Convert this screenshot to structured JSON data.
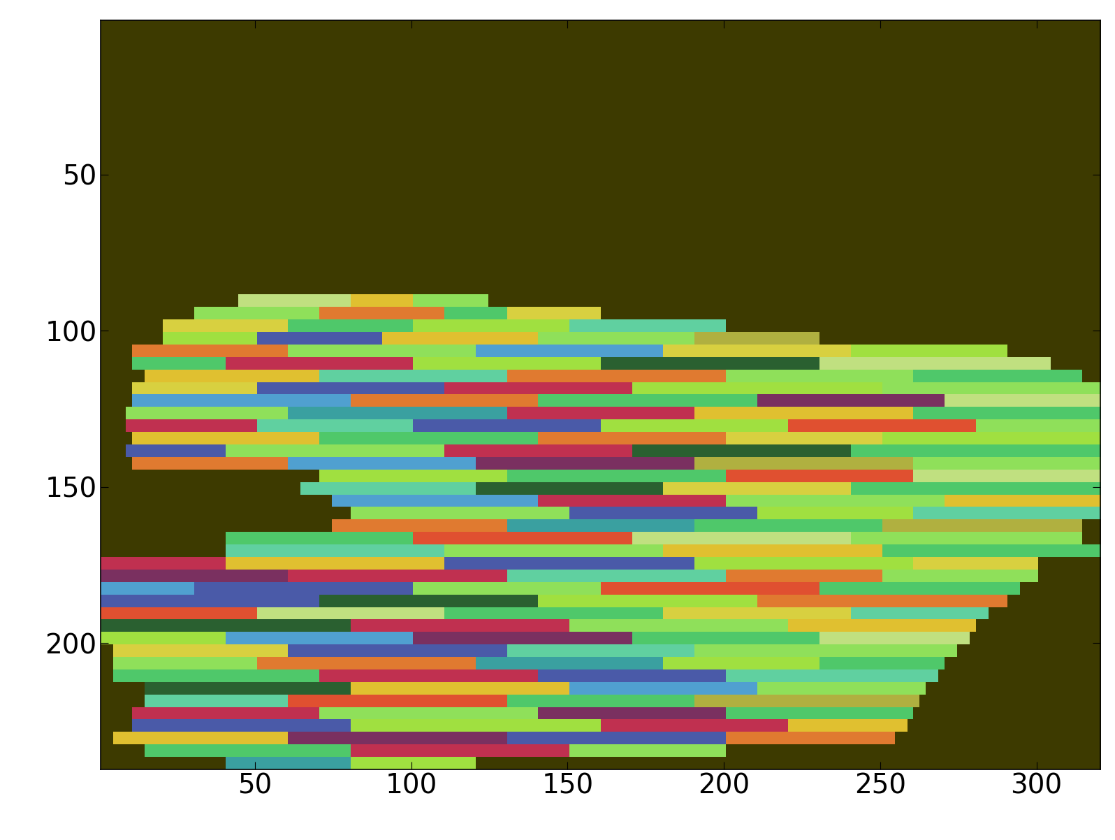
{
  "chart_data": {
    "type": "image",
    "color": "#3d3a00",
    "xlim": [
      0.5,
      320.5
    ],
    "ylim": [
      240.5,
      0.5
    ],
    "xticks": [
      50,
      100,
      150,
      200,
      250,
      300
    ],
    "yticks": [
      50,
      100,
      150,
      200
    ],
    "bands": [
      {
        "y": [
          88,
          92
        ],
        "x_start": [
          45,
          80,
          100
        ],
        "x_end": [
          80,
          100,
          125
        ],
        "colors": [
          "#c0e080",
          "#e0c030",
          "#8fe05a"
        ]
      },
      {
        "y": [
          92,
          96
        ],
        "x_start": [
          30,
          70,
          110,
          130
        ],
        "x_end": [
          70,
          110,
          130,
          160
        ],
        "colors": [
          "#8fe05a",
          "#e07a30",
          "#4fc86a",
          "#d8d040"
        ]
      },
      {
        "y": [
          96,
          100
        ],
        "x_start": [
          20,
          60,
          100,
          150
        ],
        "x_end": [
          60,
          100,
          150,
          200
        ],
        "colors": [
          "#d8d040",
          "#4fc86a",
          "#a0e040",
          "#60d0a0"
        ]
      },
      {
        "y": [
          100,
          104
        ],
        "x_start": [
          20,
          50,
          90,
          140,
          190
        ],
        "x_end": [
          50,
          90,
          140,
          190,
          230
        ],
        "colors": [
          "#a0e040",
          "#4a5aa8",
          "#e0c030",
          "#8fe05a",
          "#b0b040"
        ]
      },
      {
        "y": [
          104,
          108
        ],
        "x_start": [
          10,
          60,
          120,
          180,
          240
        ],
        "x_end": [
          60,
          120,
          180,
          240,
          290
        ],
        "colors": [
          "#e07a30",
          "#8fe05a",
          "#50a0d0",
          "#d8d040",
          "#a0e040"
        ]
      },
      {
        "y": [
          108,
          112
        ],
        "x_start": [
          10,
          40,
          100,
          160,
          230
        ],
        "x_end": [
          40,
          100,
          160,
          230,
          305
        ],
        "colors": [
          "#4fc86a",
          "#c03050",
          "#a0e040",
          "#2a6030",
          "#c0e080"
        ]
      },
      {
        "y": [
          112,
          116
        ],
        "x_start": [
          15,
          70,
          130,
          200,
          260
        ],
        "x_end": [
          70,
          130,
          200,
          260,
          315
        ],
        "colors": [
          "#e0c030",
          "#60d0a0",
          "#e07a30",
          "#8fe05a",
          "#4fc86a"
        ]
      },
      {
        "y": [
          116,
          120
        ],
        "x_start": [
          10,
          50,
          110,
          170,
          250
        ],
        "x_end": [
          50,
          110,
          170,
          250,
          320
        ],
        "colors": [
          "#d8d040",
          "#4a5aa8",
          "#c03050",
          "#a0e040",
          "#8fe05a"
        ]
      },
      {
        "y": [
          120,
          124
        ],
        "x_start": [
          10,
          80,
          140,
          210,
          270
        ],
        "x_end": [
          80,
          140,
          210,
          270,
          320
        ],
        "colors": [
          "#50a0d0",
          "#e07a30",
          "#4fc86a",
          "#7a3060",
          "#c0e080"
        ]
      },
      {
        "y": [
          124,
          128
        ],
        "x_start": [
          8,
          60,
          130,
          190,
          260
        ],
        "x_end": [
          60,
          130,
          190,
          260,
          320
        ],
        "colors": [
          "#8fe05a",
          "#3aa0a0",
          "#c03050",
          "#e0c030",
          "#4fc86a"
        ]
      },
      {
        "y": [
          128,
          132
        ],
        "x_start": [
          8,
          50,
          100,
          160,
          220,
          280
        ],
        "x_end": [
          50,
          100,
          160,
          220,
          280,
          320
        ],
        "colors": [
          "#c03050",
          "#60d0a0",
          "#4a5aa8",
          "#a0e040",
          "#e05030",
          "#8fe05a"
        ]
      },
      {
        "y": [
          132,
          136
        ],
        "x_start": [
          10,
          70,
          140,
          200,
          250
        ],
        "x_end": [
          70,
          140,
          200,
          250,
          320
        ],
        "colors": [
          "#e0c030",
          "#4fc86a",
          "#e07a30",
          "#d8d040",
          "#a0e040"
        ]
      },
      {
        "y": [
          136,
          140
        ],
        "x_start": [
          8,
          40,
          110,
          170,
          240
        ],
        "x_end": [
          40,
          110,
          170,
          240,
          320
        ],
        "colors": [
          "#4a5aa8",
          "#8fe05a",
          "#c03050",
          "#2a6030",
          "#4fc86a"
        ]
      },
      {
        "y": [
          140,
          144
        ],
        "x_start": [
          10,
          60,
          120,
          190,
          260
        ],
        "x_end": [
          60,
          120,
          190,
          260,
          320
        ],
        "colors": [
          "#e07a30",
          "#50a0d0",
          "#7a3060",
          "#b0b040",
          "#8fe05a"
        ]
      },
      {
        "y": [
          144,
          148
        ],
        "x_start": [
          70,
          130,
          200,
          260
        ],
        "x_end": [
          130,
          200,
          260,
          320
        ],
        "colors": [
          "#a0e040",
          "#4fc86a",
          "#e05030",
          "#c0e080"
        ]
      },
      {
        "y": [
          148,
          152
        ],
        "x_start": [
          65,
          120,
          180,
          240
        ],
        "x_end": [
          120,
          180,
          240,
          320
        ],
        "colors": [
          "#60d0a0",
          "#2a6030",
          "#d8d040",
          "#4fc86a"
        ]
      },
      {
        "y": [
          152,
          156
        ],
        "x_start": [
          75,
          140,
          200,
          270
        ],
        "x_end": [
          140,
          200,
          270,
          320
        ],
        "colors": [
          "#50a0d0",
          "#c03050",
          "#8fe05a",
          "#e0c030"
        ]
      },
      {
        "y": [
          156,
          160
        ],
        "x_start": [
          80,
          150,
          210,
          260
        ],
        "x_end": [
          150,
          210,
          260,
          320
        ],
        "colors": [
          "#8fe05a",
          "#4a5aa8",
          "#a0e040",
          "#60d0a0"
        ]
      },
      {
        "y": [
          160,
          164
        ],
        "x_start": [
          75,
          130,
          190,
          250
        ],
        "x_end": [
          130,
          190,
          250,
          315
        ],
        "colors": [
          "#e07a30",
          "#3aa0a0",
          "#4fc86a",
          "#b0b040"
        ]
      },
      {
        "y": [
          164,
          168
        ],
        "x_start": [
          40,
          100,
          170,
          240
        ],
        "x_end": [
          100,
          170,
          240,
          315
        ],
        "colors": [
          "#4fc86a",
          "#e05030",
          "#c0e080",
          "#8fe05a"
        ]
      },
      {
        "y": [
          168,
          172
        ],
        "x_start": [
          40,
          110,
          180,
          250
        ],
        "x_end": [
          110,
          180,
          250,
          320
        ],
        "colors": [
          "#60d0a0",
          "#8fe05a",
          "#e0c030",
          "#4fc86a"
        ]
      },
      {
        "y": [
          172,
          176
        ],
        "x_start": [
          0,
          40,
          110,
          190,
          260
        ],
        "x_end": [
          40,
          110,
          190,
          260,
          300
        ],
        "colors": [
          "#c03050",
          "#e0c030",
          "#4a5aa8",
          "#a0e040",
          "#d8d040"
        ]
      },
      {
        "y": [
          176,
          180
        ],
        "x_start": [
          0,
          60,
          130,
          200,
          250
        ],
        "x_end": [
          60,
          130,
          200,
          250,
          300
        ],
        "colors": [
          "#7a3060",
          "#c03050",
          "#60d0a0",
          "#e07a30",
          "#8fe05a"
        ]
      },
      {
        "y": [
          180,
          184
        ],
        "x_start": [
          0,
          30,
          100,
          160,
          230
        ],
        "x_end": [
          30,
          100,
          160,
          230,
          295
        ],
        "colors": [
          "#50a0d0",
          "#4a5aa8",
          "#8fe05a",
          "#e05030",
          "#4fc86a"
        ]
      },
      {
        "y": [
          184,
          188
        ],
        "x_start": [
          0,
          70,
          140,
          210
        ],
        "x_end": [
          70,
          140,
          210,
          290
        ],
        "colors": [
          "#4a5aa8",
          "#2a6030",
          "#a0e040",
          "#e07a30"
        ]
      },
      {
        "y": [
          188,
          192
        ],
        "x_start": [
          0,
          50,
          110,
          180,
          240
        ],
        "x_end": [
          50,
          110,
          180,
          240,
          285
        ],
        "colors": [
          "#e05030",
          "#c0e080",
          "#4fc86a",
          "#d8d040",
          "#60d0a0"
        ]
      },
      {
        "y": [
          192,
          196
        ],
        "x_start": [
          0,
          80,
          150,
          220
        ],
        "x_end": [
          80,
          150,
          220,
          280
        ],
        "colors": [
          "#2a6030",
          "#c03050",
          "#8fe05a",
          "#e0c030"
        ]
      },
      {
        "y": [
          196,
          200
        ],
        "x_start": [
          0,
          40,
          100,
          170,
          230
        ],
        "x_end": [
          40,
          100,
          170,
          230,
          278
        ],
        "colors": [
          "#a0e040",
          "#50a0d0",
          "#7a3060",
          "#4fc86a",
          "#c0e080"
        ]
      },
      {
        "y": [
          200,
          204
        ],
        "x_start": [
          5,
          60,
          130,
          190
        ],
        "x_end": [
          60,
          130,
          190,
          275
        ],
        "colors": [
          "#d8d040",
          "#4a5aa8",
          "#60d0a0",
          "#8fe05a"
        ]
      },
      {
        "y": [
          204,
          208
        ],
        "x_start": [
          5,
          50,
          120,
          180,
          230
        ],
        "x_end": [
          50,
          120,
          180,
          230,
          270
        ],
        "colors": [
          "#8fe05a",
          "#e07a30",
          "#3aa0a0",
          "#a0e040",
          "#4fc86a"
        ]
      },
      {
        "y": [
          208,
          212
        ],
        "x_start": [
          5,
          70,
          140,
          200
        ],
        "x_end": [
          70,
          140,
          200,
          268
        ],
        "colors": [
          "#4fc86a",
          "#c03050",
          "#4a5aa8",
          "#60d0a0"
        ]
      },
      {
        "y": [
          212,
          216
        ],
        "x_start": [
          15,
          80,
          150,
          210
        ],
        "x_end": [
          80,
          150,
          210,
          265
        ],
        "colors": [
          "#2a6030",
          "#e0c030",
          "#50a0d0",
          "#8fe05a"
        ]
      },
      {
        "y": [
          216,
          220
        ],
        "x_start": [
          15,
          60,
          130,
          190
        ],
        "x_end": [
          60,
          130,
          190,
          262
        ],
        "colors": [
          "#60d0a0",
          "#e05030",
          "#4fc86a",
          "#b0b040"
        ]
      },
      {
        "y": [
          220,
          224
        ],
        "x_start": [
          10,
          70,
          140,
          200
        ],
        "x_end": [
          70,
          140,
          200,
          260
        ],
        "colors": [
          "#c03050",
          "#8fe05a",
          "#7a3060",
          "#4fc86a"
        ]
      },
      {
        "y": [
          224,
          228
        ],
        "x_start": [
          10,
          80,
          160,
          220
        ],
        "x_end": [
          80,
          160,
          220,
          258
        ],
        "colors": [
          "#4a5aa8",
          "#a0e040",
          "#c03050",
          "#e0c030"
        ]
      },
      {
        "y": [
          228,
          232
        ],
        "x_start": [
          5,
          60,
          130,
          200
        ],
        "x_end": [
          60,
          130,
          200,
          255
        ],
        "colors": [
          "#e0c030",
          "#7a3060",
          "#4a5aa8",
          "#e07a30"
        ]
      },
      {
        "y": [
          232,
          236
        ],
        "x_start": [
          15,
          80,
          150
        ],
        "x_end": [
          80,
          150,
          200
        ],
        "colors": [
          "#4fc86a",
          "#c03050",
          "#8fe05a"
        ]
      },
      {
        "y": [
          236,
          240
        ],
        "x_start": [
          40,
          80
        ],
        "x_end": [
          80,
          120
        ],
        "colors": [
          "#3aa0a0",
          "#a0e040"
        ]
      }
    ]
  }
}
